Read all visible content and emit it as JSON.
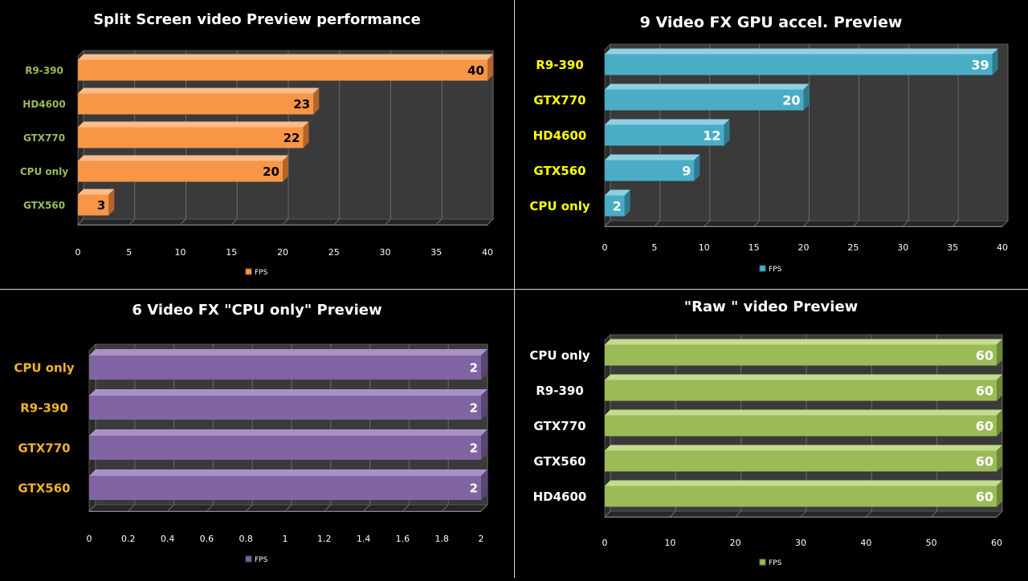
{
  "chart_data": [
    {
      "type": "bar",
      "title": "Split Screen video Preview performance",
      "categories": [
        "R9-390",
        "HD4600",
        "GTX770",
        "CPU only",
        "GTX560"
      ],
      "values": [
        40,
        23,
        22,
        20,
        3
      ],
      "series_name": "FPS",
      "xlim": [
        0,
        40
      ],
      "ticks": [
        0,
        5,
        10,
        15,
        20,
        25,
        30,
        35,
        40
      ],
      "bar_color": "#f79646",
      "bar_dark": "#b4632a",
      "bar_light": "#fbbd8c",
      "label_color": "#9bbb59",
      "orientation": "horizontal",
      "legend": "bottom"
    },
    {
      "type": "bar",
      "title": "9 Video FX GPU accel. Preview",
      "categories": [
        "R9-390",
        "GTX770",
        "HD4600",
        "GTX560",
        "CPU only"
      ],
      "values": [
        39,
        20,
        12,
        9,
        2
      ],
      "series_name": "FPS",
      "xlim": [
        0,
        40
      ],
      "ticks": [
        0,
        5,
        10,
        15,
        20,
        25,
        30,
        35,
        40
      ],
      "bar_color": "#4bacc6",
      "bar_dark": "#2e7a8f",
      "bar_light": "#8fd0e2",
      "label_color": "#ffff00",
      "orientation": "horizontal",
      "legend": "bottom"
    },
    {
      "type": "bar",
      "title": "6 Video FX \"CPU only\" Preview",
      "categories": [
        "CPU only",
        "R9-390",
        "GTX770",
        "GTX560"
      ],
      "values": [
        2,
        2,
        2,
        2
      ],
      "series_name": "FPS",
      "xlim": [
        0,
        2
      ],
      "ticks": [
        0,
        0.2,
        0.4,
        0.6,
        0.8,
        1,
        1.2,
        1.4,
        1.6,
        1.8,
        2
      ],
      "bar_color": "#8064a2",
      "bar_dark": "#5a4575",
      "bar_light": "#a892c4",
      "label_color": "#f4b12c",
      "orientation": "horizontal",
      "legend": "bottom"
    },
    {
      "type": "bar",
      "title": "\"Raw \" video Preview",
      "categories": [
        "CPU only",
        "R9-390",
        "GTX770",
        "GTX560",
        "HD4600"
      ],
      "values": [
        60,
        60,
        60,
        60,
        60
      ],
      "series_name": "FPS",
      "xlim": [
        0,
        60
      ],
      "ticks": [
        0,
        10,
        20,
        30,
        40,
        50,
        60
      ],
      "bar_color": "#9bbb59",
      "bar_dark": "#6d8a35",
      "bar_light": "#c3dc8f",
      "label_color": "#ffffff",
      "orientation": "horizontal",
      "legend": "bottom"
    }
  ]
}
